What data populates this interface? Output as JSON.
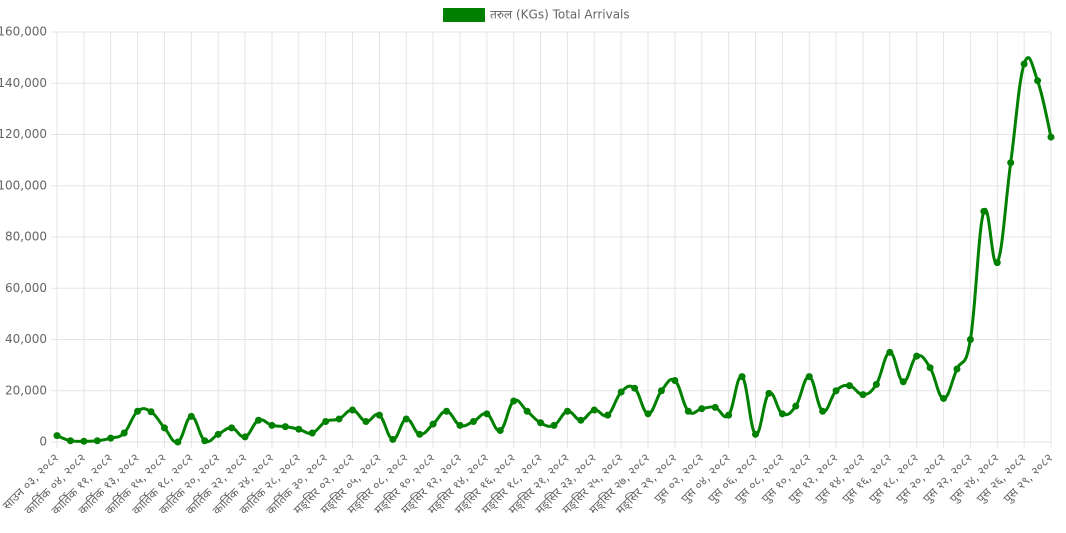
{
  "chart_data": {
    "type": "line",
    "legend_position": "top",
    "categories": [
      "साउन ०३, २०८२",
      null,
      "कार्तिक ०४, २०८२",
      null,
      "कार्तिक ११, २०८२",
      null,
      "कार्तिक १३, २०८२",
      null,
      "कार्तिक १५, २०८२",
      null,
      "कार्तिक १८, २०८२",
      null,
      "कार्तिक २०, २०८२",
      null,
      "कार्तिक २२, २०८२",
      null,
      "कार्तिक २४, २०८२",
      null,
      "कार्तिक २८, २०८२",
      null,
      "कार्तिक ३०, २०८२",
      null,
      "मङ्सिर ०२, २०८२",
      null,
      "मङ्सिर ०५, २०८२",
      null,
      "मङ्सिर ०८, २०८२",
      null,
      "मङ्सिर १०, २०८२",
      null,
      "मङ्सिर १२, २०८२",
      null,
      "मङ्सिर १४, २०८२",
      null,
      "मङ्सिर १६, २०८२",
      null,
      "मङ्सिर १८, २०८२",
      null,
      "मङ्सिर २१, २०८२",
      null,
      "मङ्सिर २३, २०८२",
      null,
      "मङ्सिर २५, २०८२",
      null,
      "मङ्सिर २७, २०८२",
      null,
      "मङ्सिर २९, २०८२",
      null,
      "पुस ०२, २०८२",
      null,
      "पुस ०४, २०८२",
      null,
      "पुस ०६, २०८२",
      null,
      "पुस ०८, २०८२",
      null,
      "पुस १०, २०८२",
      null,
      "पुस १२, २०८२",
      null,
      "पुस १४, २०८२",
      null,
      "पुस १६, २०८२",
      null,
      "पुस १८, २०८२",
      null,
      "पुस २०, २०८२",
      null,
      "पुस २२, २०८२",
      null,
      "पुस २४, २०८२",
      null,
      "पुस २६, २०८२",
      null,
      "पुस २९, २०८२"
    ],
    "series": [
      {
        "name": "तरुल (KGs) Total Arrivals",
        "color": "#008000",
        "values": [
          2500,
          500,
          300,
          500,
          1500,
          3500,
          12000,
          11800,
          5500,
          0,
          10000,
          500,
          3000,
          5500,
          2000,
          8500,
          6500,
          6000,
          5000,
          3500,
          8000,
          9000,
          12500,
          8000,
          10500,
          1000,
          9000,
          3000,
          7000,
          12000,
          6500,
          8000,
          11000,
          4500,
          16000,
          12000,
          7500,
          6500,
          12000,
          8500,
          12500,
          10500,
          19500,
          21000,
          11000,
          20000,
          24000,
          12000,
          13000,
          13500,
          10500,
          25500,
          3000,
          19000,
          11000,
          14000,
          25500,
          12000,
          20000,
          22000,
          18500,
          22500,
          35000,
          23500,
          33500,
          29000,
          17000,
          28500,
          40000,
          90000,
          70000,
          109000,
          147500,
          141000,
          119000
        ]
      }
    ],
    "ylim": [
      0,
      160000
    ],
    "yticks": [
      0,
      {
        "value": 20000,
        "label": "20,000"
      },
      {
        "value": 40000,
        "label": "40,000"
      },
      {
        "value": 60000,
        "label": "60,000"
      },
      {
        "value": 80000,
        "label": "80,000"
      },
      {
        "value": 100000,
        "label": "100,000"
      },
      {
        "value": 120000,
        "label": "120,000"
      },
      {
        "value": 140000,
        "label": "140,000"
      },
      {
        "value": 160000,
        "label": "160,000"
      }
    ],
    "grid": true
  }
}
